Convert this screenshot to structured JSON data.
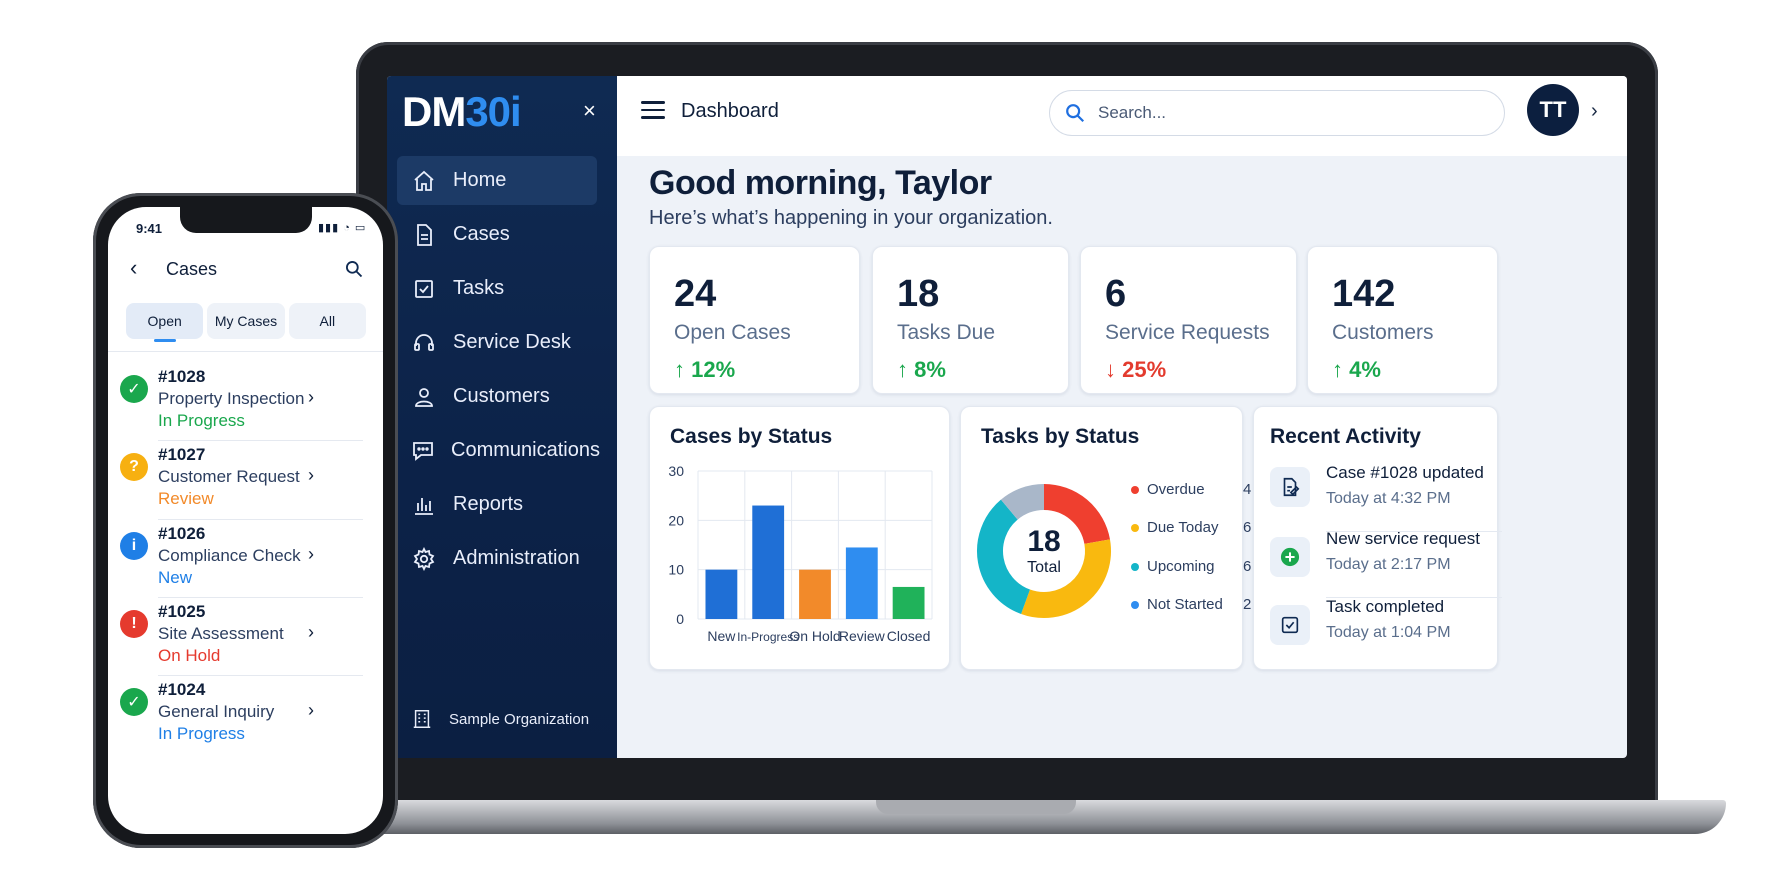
{
  "laptop": {
    "sidebar": {
      "logo_main": "DM",
      "logo_accent": "30i",
      "close": "×",
      "items": [
        {
          "label": "Home",
          "icon": "home-icon",
          "active": true
        },
        {
          "label": "Cases",
          "icon": "document-icon"
        },
        {
          "label": "Tasks",
          "icon": "checkbox-icon"
        },
        {
          "label": "Service Desk",
          "icon": "headset-icon"
        },
        {
          "label": "Customers",
          "icon": "user-icon"
        },
        {
          "label": "Communications",
          "icon": "chat-icon"
        },
        {
          "label": "Reports",
          "icon": "bar-chart-icon"
        },
        {
          "label": "Administration",
          "icon": "gear-icon"
        }
      ],
      "organization": "Sample Organization"
    },
    "header": {
      "title": "Dashboard",
      "search_placeholder": "Search...",
      "avatar_initials": "TT",
      "chevron": "›"
    },
    "greeting": "Good morning, Taylor",
    "subgreeting": "Here’s what’s happening in your organization.",
    "stats": [
      {
        "value": "24",
        "label": "Open Cases",
        "trend": "↑ 12%",
        "direction": "up"
      },
      {
        "value": "18",
        "label": "Tasks Due",
        "trend": "↑ 8%",
        "direction": "up"
      },
      {
        "value": "6",
        "label": "Service Requests",
        "trend": "↓ 25%",
        "direction": "down"
      },
      {
        "value": "142",
        "label": "Customers",
        "trend": "↑ 4%",
        "direction": "up"
      }
    ],
    "cases_panel_title": "Cases by Status",
    "tasks_panel_title": "Tasks by Status",
    "tasks_total_value": "18",
    "tasks_total_label": "Total",
    "tasks_legend": [
      {
        "label": "Overdue",
        "value": "4"
      },
      {
        "label": "Due Today",
        "value": "6"
      },
      {
        "label": "Upcoming",
        "value": "6"
      },
      {
        "label": "Not Started",
        "value": "2"
      }
    ],
    "activity_title": "Recent Activity",
    "activity": [
      {
        "title": "Case #1028 updated",
        "time": "Today at 4:32 PM",
        "icon": "edit-document-icon"
      },
      {
        "title": "New service request",
        "time": "Today at 2:17 PM",
        "icon": "plus-circle-icon"
      },
      {
        "title": "Task completed",
        "time": "Today at 1:04 PM",
        "icon": "check-square-icon"
      }
    ]
  },
  "chart_data": [
    {
      "type": "bar",
      "title": "Cases by Status",
      "categories": [
        "New",
        "In-Progress",
        "On Hold",
        "Review",
        "Closed"
      ],
      "values": [
        10,
        23,
        10,
        14.5,
        6.5
      ],
      "colors": [
        "#1f6fd6",
        "#1f6fd6",
        "#f28a2a",
        "#2f8df0",
        "#20b25a"
      ],
      "ylim": [
        0,
        30
      ],
      "yticks": [
        0,
        10,
        20,
        30
      ],
      "grid": true
    },
    {
      "type": "pie",
      "title": "Tasks by Status",
      "categories": [
        "Overdue",
        "Due Today",
        "Upcoming",
        "Not Started"
      ],
      "values": [
        4,
        6,
        6,
        2
      ],
      "colors": [
        "#ef3f2f",
        "#f9b90f",
        "#14b5c8",
        "#a9b7c9"
      ],
      "legend": "right"
    }
  ],
  "phone": {
    "time": "9:41",
    "status_icons": "▮▮▮ ◔ ▭",
    "back": "‹",
    "title": "Cases",
    "tabs": [
      "Open",
      "My Cases",
      "All"
    ],
    "items": [
      {
        "number": "#1028",
        "name": "Property Inspection",
        "status": "In Progress",
        "badge": "✓",
        "badge_color": "#1aa74d",
        "status_color": "#1aa74d"
      },
      {
        "number": "#1027",
        "name": "Customer Request",
        "status": "Review",
        "badge": "?",
        "badge_color": "#f7b011",
        "status_color": "#f28a2a"
      },
      {
        "number": "#1026",
        "name": "Compliance Check",
        "status": "New",
        "badge": "i",
        "badge_color": "#1f7fe6",
        "status_color": "#1f7fe6"
      },
      {
        "number": "#1025",
        "name": "Site Assessment",
        "status": "On Hold",
        "badge": "!",
        "badge_color": "#e53a2e",
        "status_color": "#e53a2e"
      },
      {
        "number": "#1024",
        "name": "General Inquiry",
        "status": "In Progress",
        "badge": "✓",
        "badge_color": "#1aa74d",
        "status_color": "#1f7fe6"
      }
    ],
    "chevron": "›"
  }
}
